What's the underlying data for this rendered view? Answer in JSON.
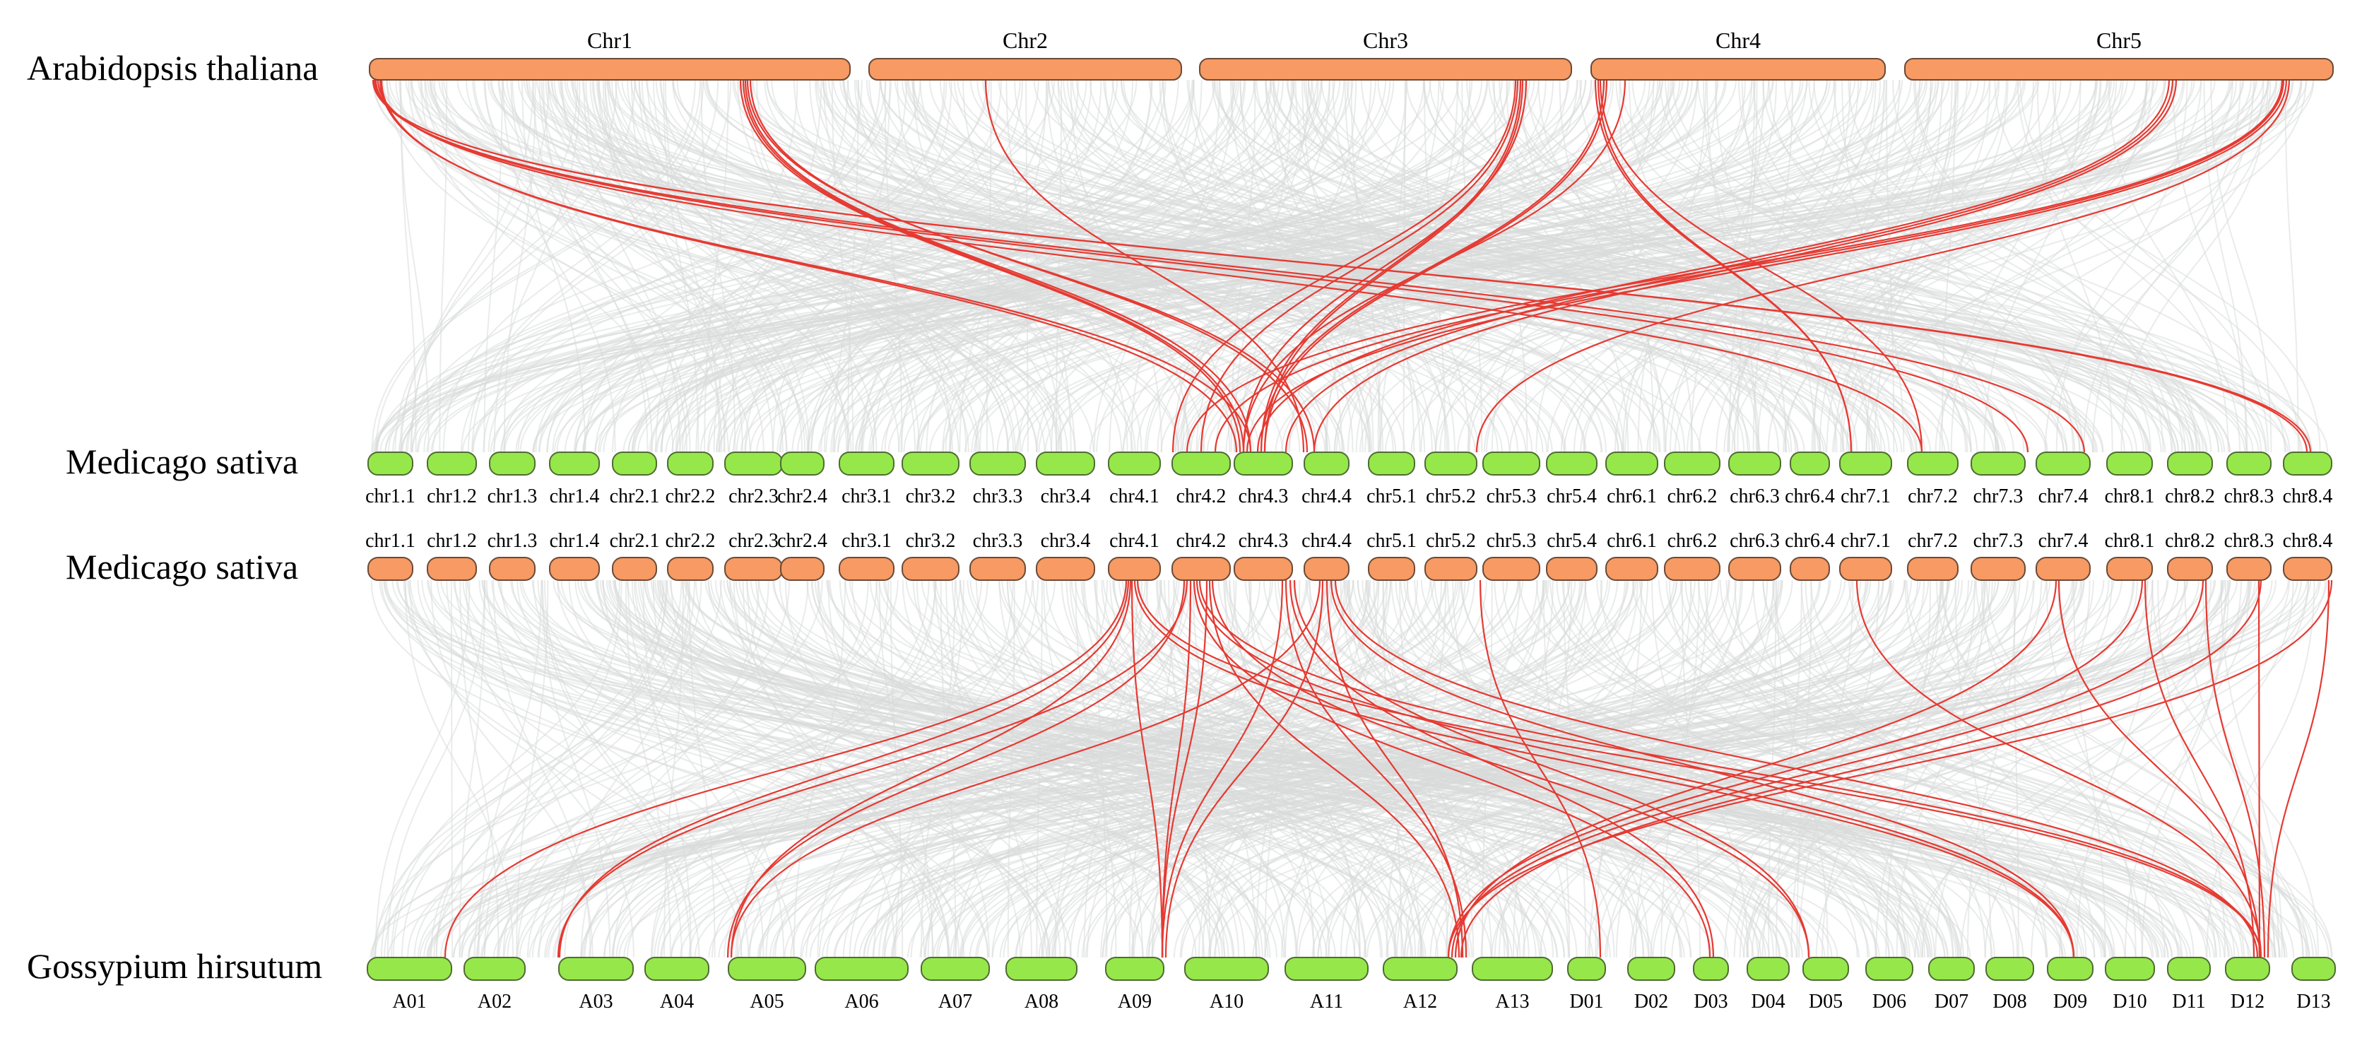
{
  "species": {
    "top": "Arabidopsis thaliana",
    "middle_a": "Medicago sativa",
    "middle_b": "Medicago sativa",
    "bottom": "Gossypium hirsutum"
  },
  "colors": {
    "orange_chromosome": "#f79a63",
    "green_chromosome": "#96e84a",
    "background_links": "#d9dadb",
    "highlight_links": "#e53a32"
  },
  "arabidopsis_chromosomes": [
    "Chr1",
    "Chr2",
    "Chr3",
    "Chr4",
    "Chr5"
  ],
  "medicago_chromosomes": [
    "chr1.1",
    "chr1.2",
    "chr1.3",
    "chr1.4",
    "chr2.1",
    "chr2.2",
    "chr2.3",
    "chr2.4",
    "chr3.1",
    "chr3.2",
    "chr3.3",
    "chr3.4",
    "chr4.1",
    "chr4.2",
    "chr4.3",
    "chr4.4",
    "chr5.1",
    "chr5.2",
    "chr5.3",
    "chr5.4",
    "chr6.1",
    "chr6.2",
    "chr6.3",
    "chr6.4",
    "chr7.1",
    "chr7.2",
    "chr7.3",
    "chr7.4",
    "chr8.1",
    "chr8.2",
    "chr8.3",
    "chr8.4"
  ],
  "gossypium_chromosomes": [
    "A01",
    "A02",
    "A03",
    "A04",
    "A05",
    "A06",
    "A07",
    "A08",
    "A09",
    "A10",
    "A11",
    "A12",
    "A13",
    "D01",
    "D02",
    "D03",
    "D04",
    "D05",
    "D06",
    "D07",
    "D08",
    "D09",
    "D10",
    "D11",
    "D12",
    "D13"
  ]
}
